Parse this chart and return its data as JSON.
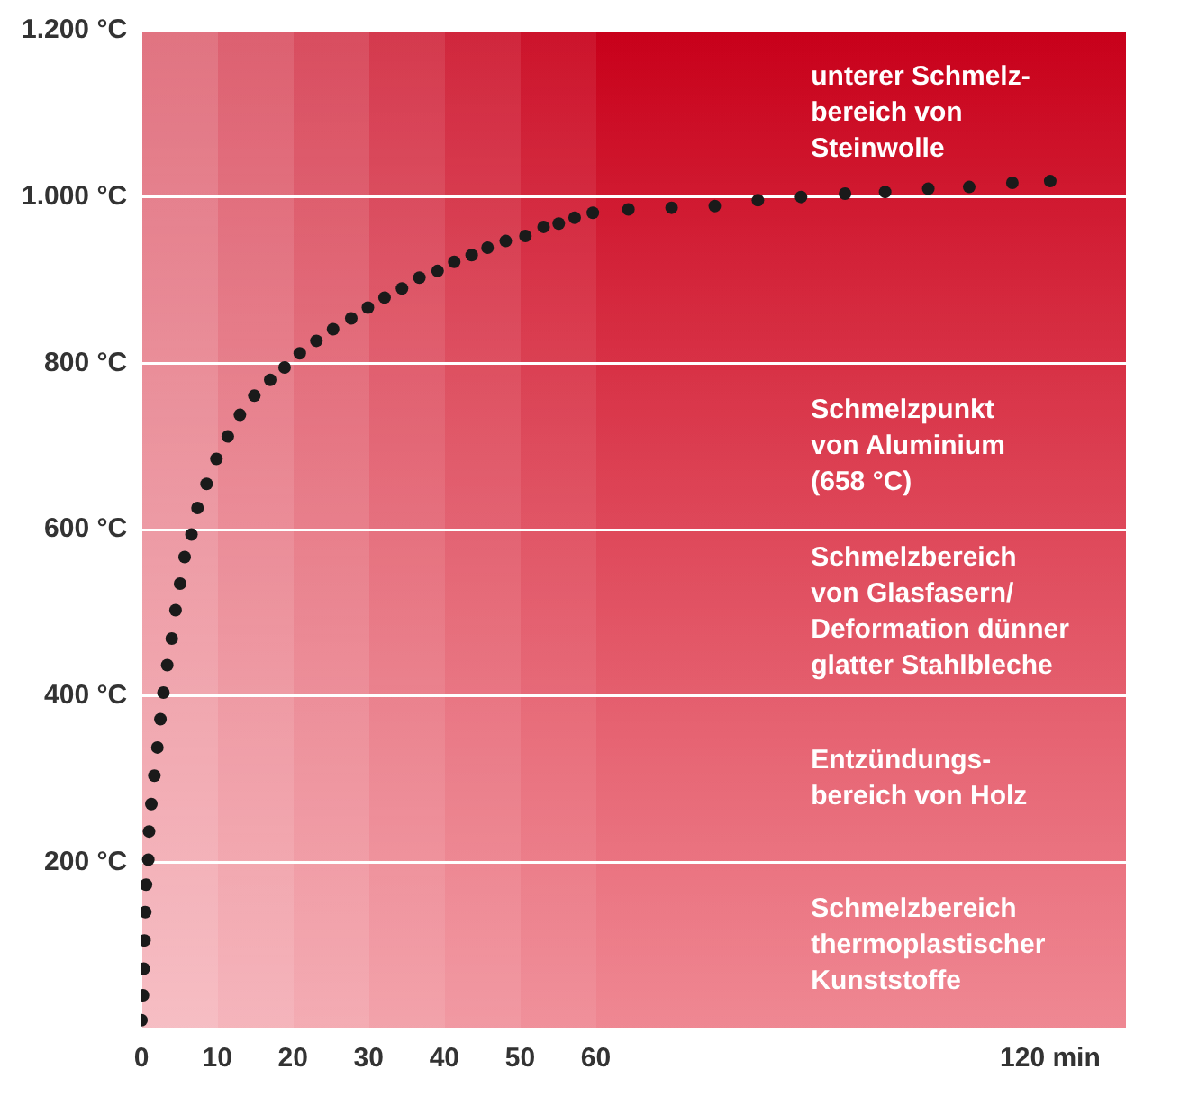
{
  "chart_data": {
    "type": "scatter",
    "color": "#1a1a1a",
    "marker": "circle",
    "grid": "y",
    "x": [
      0,
      0.2,
      0.3,
      0.4,
      0.5,
      0.6,
      0.9,
      1.0,
      1.3,
      1.7,
      2.1,
      2.5,
      2.9,
      3.4,
      4.0,
      4.5,
      5.1,
      5.7,
      6.6,
      7.4,
      8.6,
      9.9,
      11.4,
      13.0,
      14.9,
      17.0,
      18.9,
      20.9,
      23.1,
      25.3,
      27.7,
      29.9,
      32.1,
      34.4,
      36.7,
      39.1,
      41.3,
      43.6,
      45.7,
      48.1,
      50.7,
      53.1,
      55.1,
      57.2,
      59.6,
      64.3,
      70,
      75.7,
      81.4,
      87.1,
      92.9,
      98.2,
      103.9,
      109.3,
      115,
      120
    ],
    "values": [
      10,
      40,
      72,
      106,
      140,
      173,
      203,
      237,
      270,
      304,
      338,
      372,
      404,
      437,
      469,
      503,
      535,
      567,
      594,
      626,
      655,
      685,
      712,
      738,
      761,
      780,
      795,
      812,
      827,
      841,
      854,
      867,
      879,
      890,
      903,
      911,
      922,
      930,
      939,
      947,
      953,
      964,
      968,
      975,
      981,
      985,
      987,
      989,
      996,
      1000,
      1004,
      1006,
      1010,
      1012,
      1017,
      1019
    ],
    "xlim": [
      0,
      130
    ],
    "xticks": [
      0,
      10,
      20,
      30,
      40,
      50,
      60,
      {
        "value": 120,
        "label": "120 min"
      }
    ],
    "ylim": [
      0,
      1200
    ],
    "yticks": [
      {
        "value": 0,
        "label": null
      },
      {
        "value": 200,
        "label": "200 °C"
      },
      {
        "value": 400,
        "label": "400 °C"
      },
      {
        "value": 600,
        "label": "600 °C"
      },
      {
        "value": 800,
        "label": "800 °C"
      },
      {
        "value": 1000,
        "label": "1.000 °C"
      },
      {
        "value": 1200,
        "label": "1.200 °C"
      }
    ],
    "annotations": [
      "unterer Schmelz-\nbereich von\nSteinwolle",
      "Schmelzpunkt\nvon Aluminium\n(658 °C)",
      "Schmelzbereich\nvon Glasfasern/\nDeformation dünner\nglatter Stahlbleche",
      "Entzündungs-\nbereich von Holz",
      "Schmelzbereich\nthermoplastischer\nKunststoffe"
    ]
  }
}
